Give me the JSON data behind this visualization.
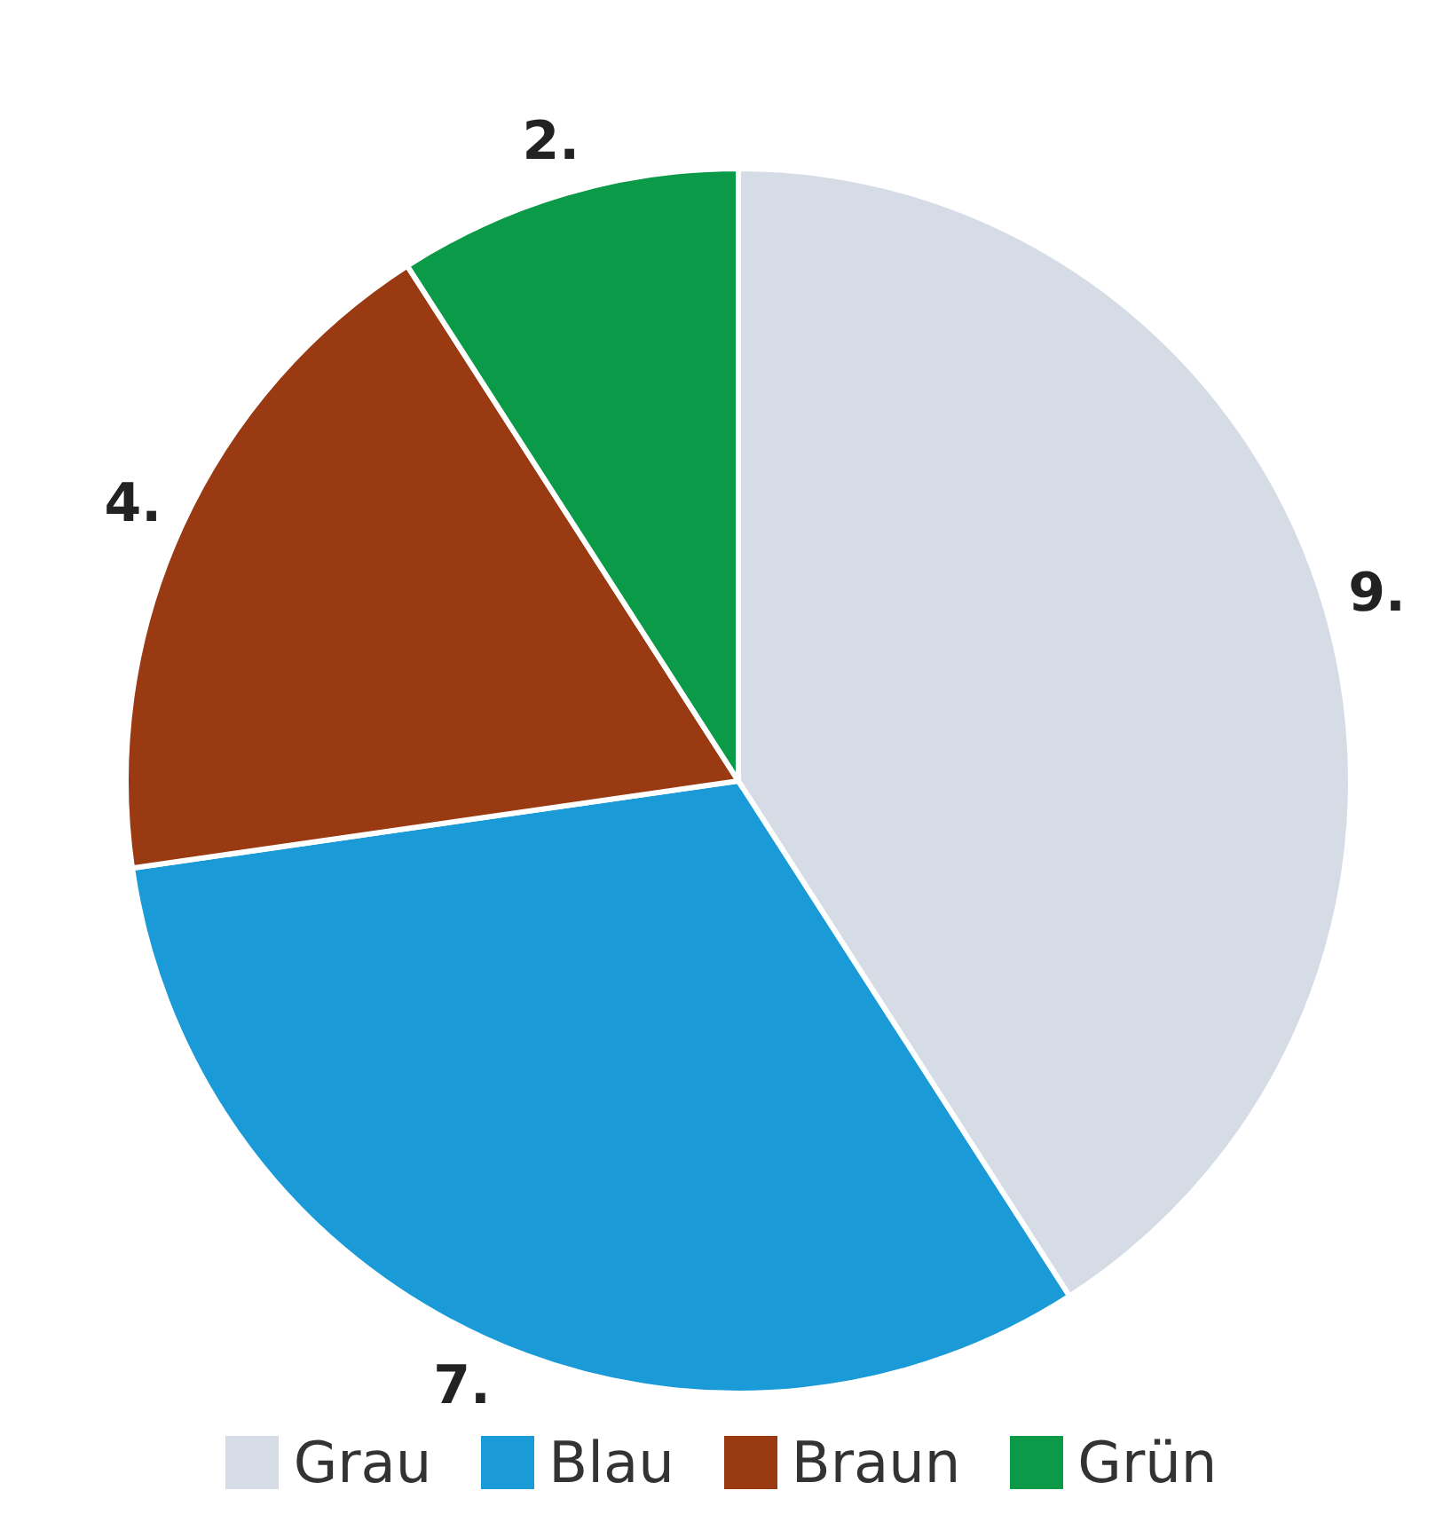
{
  "chart_data": {
    "type": "pie",
    "categories": [
      "Grau",
      "Blau",
      "Braun",
      "Grün"
    ],
    "values": [
      9,
      7,
      4,
      2
    ],
    "colors": [
      "#d5dce6",
      "#1a9bd7",
      "#9a3a12",
      "#0a9a48"
    ],
    "value_labels": [
      "9.",
      "7.",
      "4.",
      "2."
    ],
    "legend": "bottom"
  }
}
